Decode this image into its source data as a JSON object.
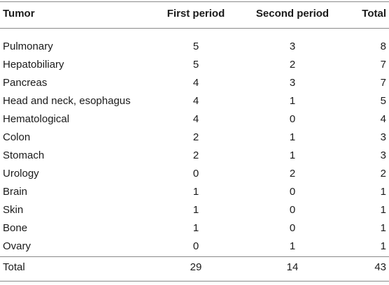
{
  "table": {
    "headers": [
      "Tumor",
      "First period",
      "Second period",
      "Total"
    ],
    "rows": [
      [
        "Pulmonary",
        "5",
        "3",
        "8"
      ],
      [
        "Hepatobiliary",
        "5",
        "2",
        "7"
      ],
      [
        "Pancreas",
        "4",
        "3",
        "7"
      ],
      [
        "Head and neck, esophagus",
        "4",
        "1",
        "5"
      ],
      [
        "Hematological",
        "4",
        "0",
        "4"
      ],
      [
        "Colon",
        "2",
        "1",
        "3"
      ],
      [
        "Stomach",
        "2",
        "1",
        "3"
      ],
      [
        "Urology",
        "0",
        "2",
        "2"
      ],
      [
        "Brain",
        "1",
        "0",
        "1"
      ],
      [
        "Skin",
        "1",
        "0",
        "1"
      ],
      [
        "Bone",
        "1",
        "0",
        "1"
      ],
      [
        "Ovary",
        "0",
        "1",
        "1"
      ]
    ],
    "total": [
      "Total",
      "29",
      "14",
      "43"
    ]
  }
}
